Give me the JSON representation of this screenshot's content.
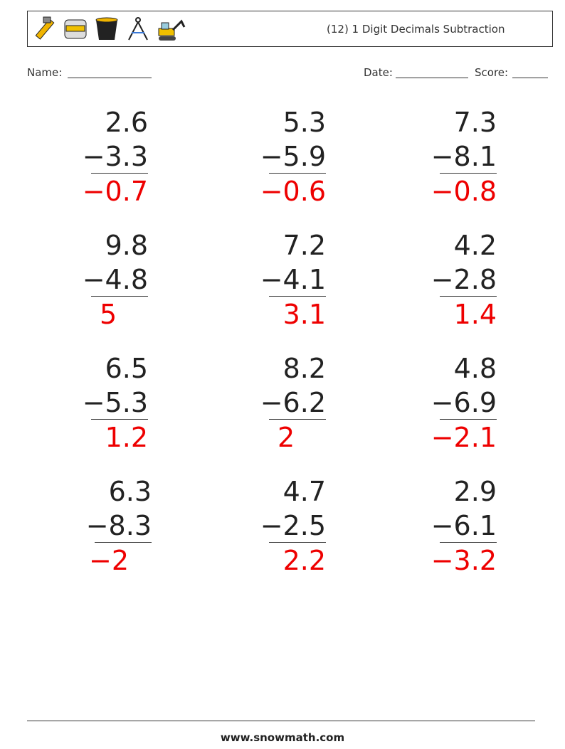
{
  "header": {
    "title": "(12) 1 Digit Decimals Subtraction"
  },
  "fields": {
    "name": "Name:",
    "date": "Date:",
    "score": "Score:"
  },
  "problems": [
    {
      "top": "2.6",
      "bottom": "−3.3",
      "answer": "−0.7"
    },
    {
      "top": "5.3",
      "bottom": "−5.9",
      "answer": "−0.6"
    },
    {
      "top": "7.3",
      "bottom": "−8.1",
      "answer": "−0.8"
    },
    {
      "top": "9.8",
      "bottom": "−4.8",
      "answer": "5"
    },
    {
      "top": "7.2",
      "bottom": "−4.1",
      "answer": "3.1"
    },
    {
      "top": "4.2",
      "bottom": "−2.8",
      "answer": "1.4"
    },
    {
      "top": "6.5",
      "bottom": "−5.3",
      "answer": "1.2"
    },
    {
      "top": "8.2",
      "bottom": "−6.2",
      "answer": "2"
    },
    {
      "top": "4.8",
      "bottom": "−6.9",
      "answer": "−2.1"
    },
    {
      "top": "6.3",
      "bottom": "−8.3",
      "answer": "−2"
    },
    {
      "top": "4.7",
      "bottom": "−2.5",
      "answer": "2.2"
    },
    {
      "top": "2.9",
      "bottom": "−6.1",
      "answer": "−3.2"
    }
  ],
  "footer": {
    "site": "www.snowmath.com"
  }
}
